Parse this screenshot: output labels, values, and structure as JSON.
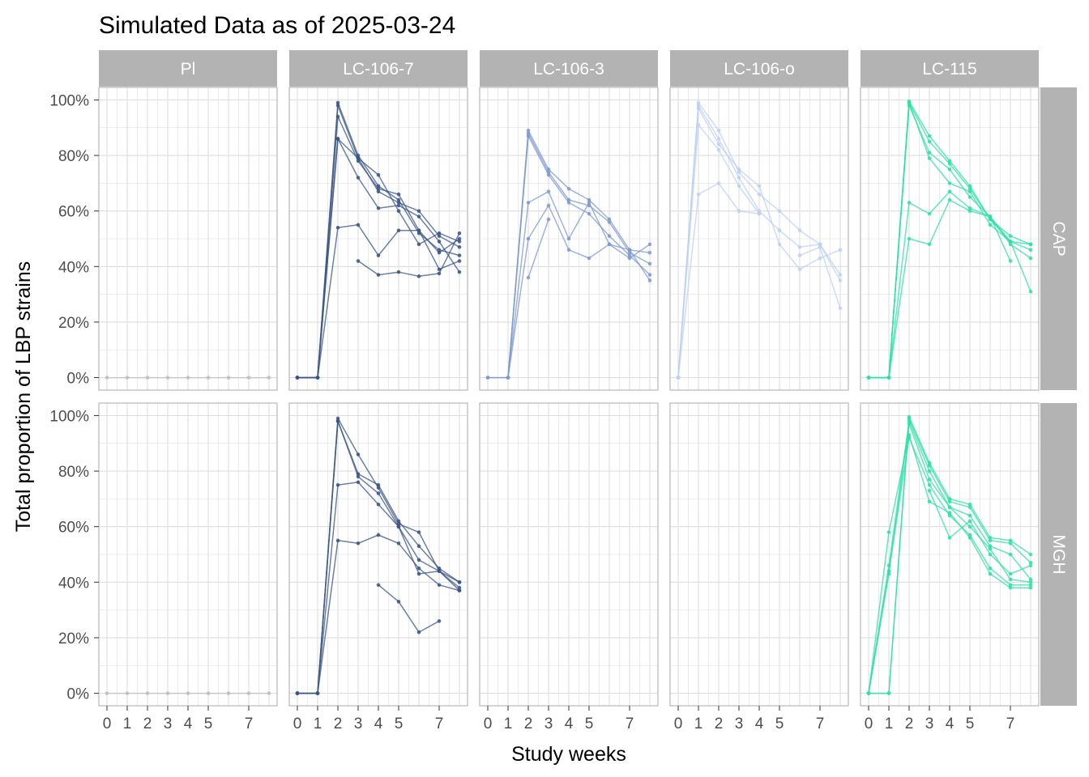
{
  "chart_data": {
    "type": "line",
    "title": "Simulated Data as of 2025-03-24",
    "xlabel": "Study weeks",
    "ylabel": "Total proportion of LBP strains",
    "x_ticks": [
      0,
      1,
      2,
      3,
      4,
      5,
      7
    ],
    "x_range": [
      -0.4,
      8.4
    ],
    "y_ticks": [
      "0%",
      "20%",
      "40%",
      "60%",
      "80%",
      "100%"
    ],
    "y_range": [
      -0.045,
      1.045
    ],
    "grid": true,
    "columns": [
      "Pl",
      "LC-106-7",
      "LC-106-3",
      "LC-106-o",
      "LC-115"
    ],
    "rows": [
      "CAP",
      "MGH"
    ],
    "colors": {
      "Pl": "#bdbdbd",
      "LC-106-7": "#3b5587",
      "LC-106-3": "#7f99cf",
      "LC-106-o": "#bcd0f5",
      "LC-115": "#2ee0a5",
      "strip_bg": "#b3b3b3",
      "grid": "#dedede",
      "panel_border": "#b8b8b8"
    },
    "panels": [
      {
        "row": "CAP",
        "col": "Pl",
        "series": [
          {
            "x": [
              0,
              1,
              2,
              3,
              4,
              5,
              6,
              7,
              8
            ],
            "y": [
              0,
              0,
              0,
              0,
              0,
              0,
              0,
              0,
              0
            ]
          }
        ]
      },
      {
        "row": "CAP",
        "col": "LC-106-7",
        "series": [
          {
            "x": [
              0,
              1,
              2,
              3,
              4,
              5,
              6,
              7,
              8
            ],
            "y": [
              0,
              0,
              0.99,
              0.8,
              0.69,
              0.64,
              0.52,
              0.46,
              0.44
            ]
          },
          {
            "x": [
              0,
              1,
              2,
              3,
              4,
              5,
              6,
              7,
              8
            ],
            "y": [
              0,
              0,
              0.98,
              0.79,
              0.67,
              0.63,
              0.6,
              0.51,
              0.47
            ]
          },
          {
            "x": [
              0,
              1,
              2,
              3,
              4,
              5,
              6,
              7,
              8
            ],
            "y": [
              0,
              0,
              0.86,
              0.79,
              0.73,
              0.6,
              0.48,
              0.52,
              0.49
            ]
          },
          {
            "x": [
              0,
              1,
              2,
              3,
              4,
              5,
              6,
              7,
              8
            ],
            "y": [
              0,
              0,
              0.94,
              0.78,
              0.68,
              0.66,
              0.53,
              0.45,
              0.5
            ]
          },
          {
            "x": [
              0,
              1,
              2,
              3,
              4,
              5,
              6,
              7,
              8
            ],
            "y": [
              0,
              0,
              0.86,
              0.72,
              0.61,
              0.62,
              0.58,
              0.49,
              0.38
            ]
          },
          {
            "x": [
              0,
              1,
              2,
              3,
              4,
              5,
              6,
              7,
              8
            ],
            "y": [
              0,
              0,
              0.54,
              0.55,
              0.44,
              0.53,
              0.53,
              0.39,
              0.42
            ]
          },
          {
            "x": [
              3,
              4,
              5,
              6,
              7,
              8
            ],
            "y": [
              0.42,
              0.37,
              0.38,
              0.365,
              0.375,
              0.52
            ]
          }
        ]
      },
      {
        "row": "CAP",
        "col": "LC-106-3",
        "series": [
          {
            "x": [
              0,
              1,
              2,
              3,
              4,
              5,
              6,
              7,
              8
            ],
            "y": [
              0,
              0,
              0.89,
              0.75,
              0.68,
              0.64,
              0.57,
              0.46,
              0.45
            ]
          },
          {
            "x": [
              0,
              1,
              2,
              3,
              4,
              5,
              6,
              7,
              8
            ],
            "y": [
              0,
              0,
              0.88,
              0.74,
              0.64,
              0.62,
              0.56,
              0.45,
              0.41
            ]
          },
          {
            "x": [
              1,
              2,
              3,
              4,
              5,
              6,
              7,
              8
            ],
            "y": [
              0,
              0.87,
              0.73,
              0.63,
              0.59,
              0.51,
              0.44,
              0.37
            ]
          },
          {
            "x": [
              1,
              2,
              3,
              4,
              5,
              6,
              7,
              8
            ],
            "y": [
              0,
              0.63,
              0.67,
              0.5,
              0.63,
              0.48,
              0.43,
              0.48
            ]
          },
          {
            "x": [
              1,
              2,
              3,
              4,
              5,
              6,
              7,
              8
            ],
            "y": [
              0,
              0.5,
              0.62,
              0.46,
              0.43,
              0.48,
              0.46,
              0.35
            ]
          },
          {
            "x": [
              2,
              3
            ],
            "y": [
              0.36,
              0.57
            ]
          }
        ]
      },
      {
        "row": "CAP",
        "col": "LC-106-o",
        "series": [
          {
            "x": [
              0,
              1,
              2,
              3,
              4,
              5,
              6,
              7,
              8
            ],
            "y": [
              0,
              0.99,
              0.89,
              0.74,
              0.66,
              0.6,
              0.53,
              0.48,
              0.37
            ]
          },
          {
            "x": [
              0,
              1,
              2,
              3,
              4,
              5,
              6,
              7,
              8
            ],
            "y": [
              0,
              0.98,
              0.86,
              0.72,
              0.6,
              0.53,
              0.47,
              0.48,
              0.35
            ]
          },
          {
            "x": [
              0,
              1,
              2,
              3,
              4,
              5,
              6,
              7,
              8
            ],
            "y": [
              0,
              0.97,
              0.84,
              0.75,
              0.69,
              0.48,
              0.39,
              0.43,
              0.46
            ]
          },
          {
            "x": [
              0,
              1,
              2,
              3,
              4
            ],
            "y": [
              0,
              0.91,
              0.82,
              0.69,
              0.59
            ]
          },
          {
            "x": [
              0,
              1,
              2,
              3,
              4
            ],
            "y": [
              0,
              0.66,
              0.7,
              0.6,
              0.59
            ]
          },
          {
            "x": [
              6,
              7,
              8
            ],
            "y": [
              0.44,
              0.47,
              0.25
            ]
          }
        ]
      },
      {
        "row": "CAP",
        "col": "LC-115",
        "series": [
          {
            "x": [
              0,
              1,
              2,
              3,
              4,
              5,
              6,
              7,
              8
            ],
            "y": [
              0,
              0,
              0.995,
              0.87,
              0.78,
              0.69,
              0.57,
              0.51,
              0.48
            ]
          },
          {
            "x": [
              0,
              1,
              2,
              3,
              4,
              5,
              6,
              7,
              8
            ],
            "y": [
              0,
              0,
              0.99,
              0.85,
              0.77,
              0.68,
              0.57,
              0.49,
              0.46
            ]
          },
          {
            "x": [
              0,
              1,
              2,
              3,
              4,
              5,
              6,
              7,
              8
            ],
            "y": [
              0,
              0,
              0.98,
              0.81,
              0.75,
              0.65,
              0.58,
              0.48,
              0.43
            ]
          },
          {
            "x": [
              0,
              1,
              2,
              3,
              4,
              5,
              6,
              7,
              8
            ],
            "y": [
              0,
              0,
              0.99,
              0.79,
              0.7,
              0.67,
              0.55,
              0.49,
              0.31
            ]
          },
          {
            "x": [
              0,
              1,
              2,
              3,
              4,
              5,
              6,
              7
            ],
            "y": [
              0,
              0,
              0.63,
              0.59,
              0.67,
              0.61,
              0.58,
              0.42
            ]
          },
          {
            "x": [
              0,
              1,
              2,
              3,
              4,
              5,
              6,
              7,
              8
            ],
            "y": [
              0,
              0,
              0.5,
              0.48,
              0.64,
              0.6,
              0.58,
              0.49,
              0.48
            ]
          }
        ]
      },
      {
        "row": "MGH",
        "col": "Pl",
        "series": [
          {
            "x": [
              0,
              1,
              2,
              3,
              4,
              5,
              6,
              7,
              8
            ],
            "y": [
              0,
              0,
              0,
              0,
              0,
              0,
              0,
              0,
              0
            ]
          }
        ]
      },
      {
        "row": "MGH",
        "col": "LC-106-7",
        "series": [
          {
            "x": [
              0,
              1,
              2,
              3,
              4,
              5,
              6,
              7,
              8
            ],
            "y": [
              0,
              0,
              0.99,
              0.86,
              0.74,
              0.61,
              0.58,
              0.44,
              0.4
            ]
          },
          {
            "x": [
              0,
              1,
              2,
              3,
              4,
              5,
              6,
              7,
              8
            ],
            "y": [
              0,
              0,
              0.98,
              0.79,
              0.75,
              0.62,
              0.53,
              0.45,
              0.4
            ]
          },
          {
            "x": [
              0,
              1,
              2,
              3,
              4,
              5,
              6,
              7,
              8
            ],
            "y": [
              0,
              0,
              0.98,
              0.78,
              0.72,
              0.6,
              0.48,
              0.44,
              0.38
            ]
          },
          {
            "x": [
              0,
              1,
              2,
              3,
              4,
              5,
              6,
              7,
              8
            ],
            "y": [
              0,
              0,
              0.75,
              0.76,
              0.68,
              0.6,
              0.43,
              0.44,
              0.37
            ]
          },
          {
            "x": [
              0,
              1,
              2,
              3,
              4,
              5,
              6,
              7,
              8
            ],
            "y": [
              0,
              0,
              0.55,
              0.54,
              0.57,
              0.54,
              0.45,
              0.39,
              0.37
            ]
          },
          {
            "x": [
              4,
              5,
              6,
              7
            ],
            "y": [
              0.39,
              0.33,
              0.22,
              0.26
            ]
          }
        ]
      },
      {
        "row": "MGH",
        "col": "LC-106-3",
        "series": []
      },
      {
        "row": "MGH",
        "col": "LC-106-o",
        "series": []
      },
      {
        "row": "MGH",
        "col": "LC-115",
        "series": [
          {
            "x": [
              0,
              1,
              2,
              3,
              4,
              5,
              6,
              7,
              8
            ],
            "y": [
              0,
              0,
              0.995,
              0.83,
              0.7,
              0.68,
              0.56,
              0.55,
              0.5
            ]
          },
          {
            "x": [
              0,
              1,
              2,
              3,
              4,
              5,
              6,
              7,
              8
            ],
            "y": [
              0,
              0,
              0.99,
              0.82,
              0.69,
              0.67,
              0.55,
              0.54,
              0.47
            ]
          },
          {
            "x": [
              0,
              1,
              2,
              3,
              4,
              5,
              6,
              7,
              8
            ],
            "y": [
              0,
              0.46,
              0.98,
              0.8,
              0.67,
              0.64,
              0.53,
              0.5,
              0.41
            ]
          },
          {
            "x": [
              0,
              1,
              2,
              3,
              4,
              5,
              6,
              7,
              8
            ],
            "y": [
              0,
              0.43,
              0.97,
              0.77,
              0.67,
              0.6,
              0.52,
              0.41,
              0.4
            ]
          },
          {
            "x": [
              0,
              1,
              2,
              3,
              4,
              5,
              6,
              7,
              8
            ],
            "y": [
              0,
              0.44,
              0.92,
              0.75,
              0.64,
              0.57,
              0.45,
              0.39,
              0.39
            ]
          },
          {
            "x": [
              0,
              1,
              2,
              3,
              4,
              5,
              6,
              7,
              8
            ],
            "y": [
              0,
              0.58,
              0.93,
              0.69,
              0.65,
              0.56,
              0.43,
              0.38,
              0.38
            ]
          },
          {
            "x": [
              3,
              4,
              5,
              6,
              7,
              8
            ],
            "y": [
              0.73,
              0.56,
              0.62,
              0.5,
              0.43,
              0.46
            ]
          }
        ]
      }
    ]
  }
}
